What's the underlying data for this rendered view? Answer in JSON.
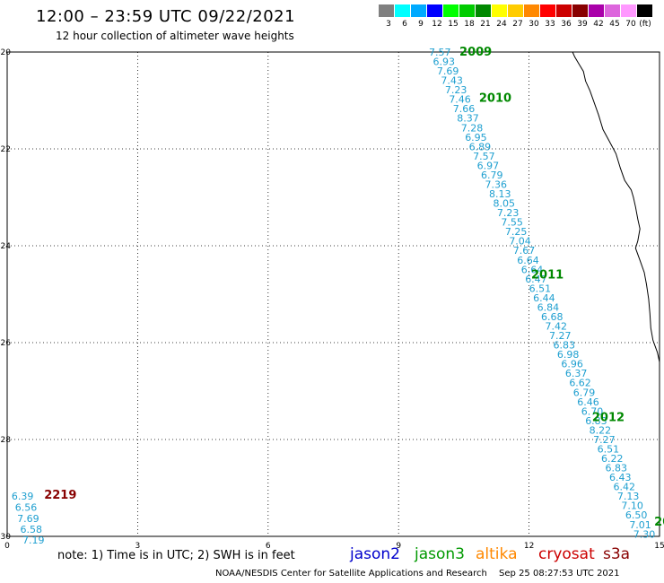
{
  "header": {
    "title": "12:00 – 23:59 UTC 09/22/2021",
    "subtitle": "12 hour collection of altimeter wave heights"
  },
  "legend": {
    "unit": "(ft)",
    "bins": [
      {
        "label": "3",
        "color": "#808080"
      },
      {
        "label": "6",
        "color": "#00ffff"
      },
      {
        "label": "9",
        "color": "#00aaff"
      },
      {
        "label": "12",
        "color": "#0000ff"
      },
      {
        "label": "15",
        "color": "#00ff00"
      },
      {
        "label": "18",
        "color": "#00cc00"
      },
      {
        "label": "21",
        "color": "#008800"
      },
      {
        "label": "24",
        "color": "#ffff00"
      },
      {
        "label": "27",
        "color": "#ffcc00"
      },
      {
        "label": "30",
        "color": "#ff8800"
      },
      {
        "label": "33",
        "color": "#ff0000"
      },
      {
        "label": "36",
        "color": "#cc0000"
      },
      {
        "label": "39",
        "color": "#880000"
      },
      {
        "label": "42",
        "color": "#aa00aa"
      },
      {
        "label": "45",
        "color": "#dd66dd"
      },
      {
        "label": "70",
        "color": "#ff99ff"
      },
      {
        "label": "",
        "color": "#000000"
      }
    ]
  },
  "map": {
    "lon_range": [
      0,
      15
    ],
    "lat_range": [
      -30,
      -20
    ],
    "x_ticks": [
      "0",
      "3",
      "6",
      "9",
      "12",
      "15"
    ],
    "y_ticks": [
      "-20",
      "-22",
      "-24",
      "-26",
      "-28",
      "-30"
    ],
    "track_color": "#1e9fd0",
    "main_track": {
      "start": {
        "lon": 9.95,
        "lat": -20.0
      },
      "end": {
        "lon": 14.65,
        "lat": -29.95
      },
      "values": [
        "7.57",
        "6.93",
        "7.69",
        "7.43",
        "7.23",
        "7.46",
        "7.66",
        "8.37",
        "7.28",
        "6.95",
        "6.89",
        "7.57",
        "6.97",
        "6.79",
        "7.36",
        "8.13",
        "8.05",
        "7.23",
        "7.55",
        "7.25",
        "7.04",
        "7.67",
        "6.64",
        "6.64",
        "6.47",
        "6.51",
        "6.44",
        "6.84",
        "6.68",
        "7.42",
        "7.27",
        "6.83",
        "6.98",
        "6.96",
        "6.37",
        "6.62",
        "6.79",
        "6.46",
        "6.70",
        "6.83",
        "8.22",
        "7.27",
        "6.51",
        "6.22",
        "6.83",
        "6.43",
        "6.42",
        "7.13",
        "7.10",
        "6.50",
        "7.01",
        "7.30"
      ]
    },
    "time_labels": [
      {
        "text": "2009",
        "lon": 10.4,
        "lat": -20.0,
        "color": "#008800"
      },
      {
        "text": "2010",
        "lon": 10.85,
        "lat": -20.95,
        "color": "#008800"
      },
      {
        "text": "2011",
        "lon": 12.05,
        "lat": -24.6,
        "color": "#008800"
      },
      {
        "text": "2012",
        "lon": 13.45,
        "lat": -27.55,
        "color": "#008800"
      },
      {
        "text": "20",
        "lon": 14.88,
        "lat": -29.7,
        "color": "#008800"
      },
      {
        "text": "2219",
        "lon": 0.85,
        "lat": -29.15,
        "color": "#880000"
      }
    ],
    "short_track": {
      "values": [
        {
          "text": "6.39",
          "lon": 0.1,
          "lat": -29.17
        },
        {
          "text": "6.56",
          "lon": 0.18,
          "lat": -29.4
        },
        {
          "text": "7.69",
          "lon": 0.23,
          "lat": -29.63
        },
        {
          "text": "6.58",
          "lon": 0.3,
          "lat": -29.85
        },
        {
          "text": "7.19",
          "lon": 0.35,
          "lat": -30.07
        }
      ]
    },
    "coastline": [
      [
        13.0,
        -20.0
      ],
      [
        13.05,
        -20.1
      ],
      [
        13.15,
        -20.25
      ],
      [
        13.25,
        -20.4
      ],
      [
        13.3,
        -20.6
      ],
      [
        13.4,
        -20.8
      ],
      [
        13.5,
        -21.05
      ],
      [
        13.6,
        -21.3
      ],
      [
        13.7,
        -21.6
      ],
      [
        13.85,
        -21.85
      ],
      [
        14.0,
        -22.1
      ],
      [
        14.1,
        -22.4
      ],
      [
        14.2,
        -22.65
      ],
      [
        14.35,
        -22.85
      ],
      [
        14.4,
        -23.0
      ],
      [
        14.45,
        -23.2
      ],
      [
        14.5,
        -23.45
      ],
      [
        14.55,
        -23.65
      ],
      [
        14.5,
        -23.9
      ],
      [
        14.45,
        -24.05
      ],
      [
        14.55,
        -24.3
      ],
      [
        14.65,
        -24.55
      ],
      [
        14.7,
        -24.8
      ],
      [
        14.75,
        -25.1
      ],
      [
        14.78,
        -25.4
      ],
      [
        14.8,
        -25.7
      ],
      [
        14.85,
        -25.95
      ],
      [
        14.95,
        -26.2
      ],
      [
        15.0,
        -26.4
      ]
    ]
  },
  "footer": {
    "note": "note: 1) Time is in UTC; 2) SWH is in feet",
    "satellites": [
      {
        "name": "jason2",
        "color": "#0000cc"
      },
      {
        "name": "jason3",
        "color": "#009900"
      },
      {
        "name": "altika",
        "color": "#ff8800"
      },
      {
        "name": "cryosat",
        "color": "#cc0000"
      },
      {
        "name": "s3a",
        "color": "#880000"
      }
    ],
    "credit": "NOAA/NESDIS Center for Satellite Applications and Research",
    "timestamp": "Sep 25 08:27:53 UTC 2021"
  }
}
